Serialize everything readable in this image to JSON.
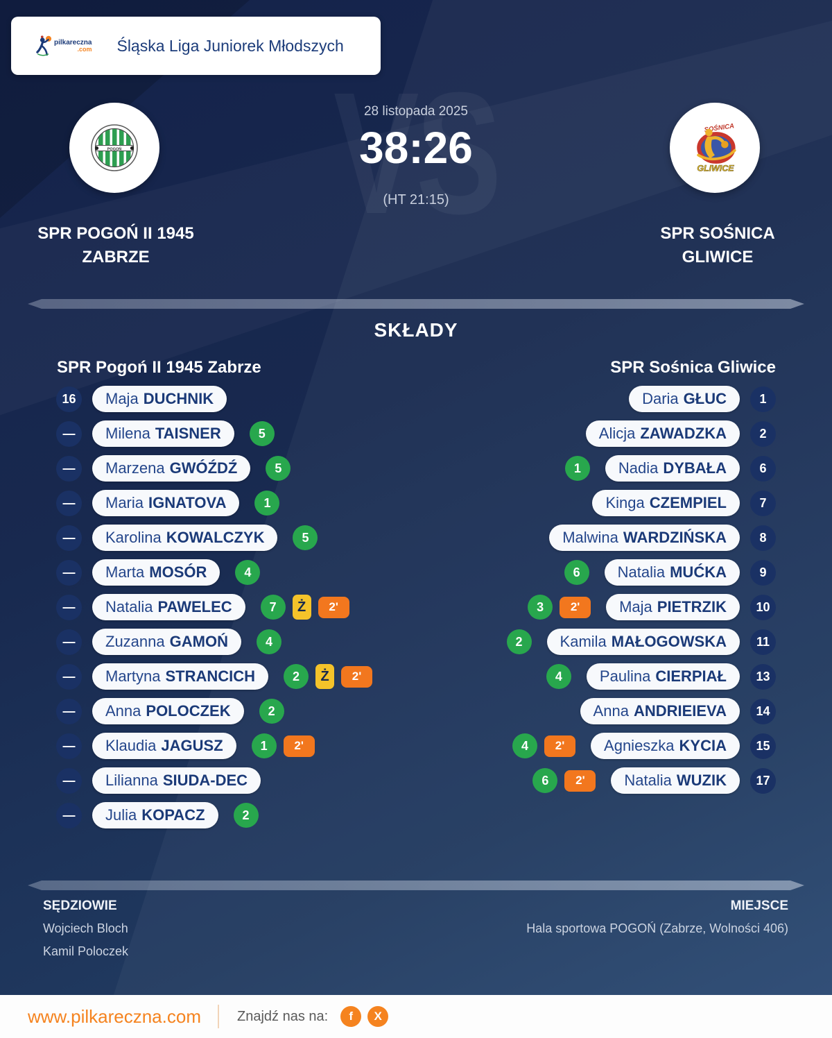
{
  "header": {
    "logo_text": "pilkareczna",
    "logo_tld": ".com",
    "league": "Śląska Liga Juniorek Młodszych"
  },
  "match": {
    "date": "28 listopada 2025",
    "score": "38:26",
    "halftime": "(HT 21:15)",
    "vs_watermark": "VS",
    "home": {
      "name_line1": "SPR POGOŃ II 1945",
      "name_line2": "ZABRZE"
    },
    "away": {
      "name_line1": "SPR SOŚNICA",
      "name_line2": "GLIWICE"
    }
  },
  "lineups": {
    "title": "SKŁADY",
    "home_header": "SPR Pogoń II 1945 Zabrze",
    "away_header": "SPR Sośnica Gliwice",
    "yellow_card_label": "Ż",
    "home_players": [
      {
        "number": "16",
        "first": "Maja",
        "last": "DUCHNIK"
      },
      {
        "number": "—",
        "first": "Milena",
        "last": "TAISNER",
        "goals": "5"
      },
      {
        "number": "—",
        "first": "Marzena",
        "last": "GWÓŹDŹ",
        "goals": "5"
      },
      {
        "number": "—",
        "first": "Maria",
        "last": "IGNATOVA",
        "goals": "1"
      },
      {
        "number": "—",
        "first": "Karolina",
        "last": "KOWALCZYK",
        "goals": "5"
      },
      {
        "number": "—",
        "first": "Marta",
        "last": "MOSÓR",
        "goals": "4"
      },
      {
        "number": "—",
        "first": "Natalia",
        "last": "PAWELEC",
        "goals": "7",
        "yellow": true,
        "two_min": "2'"
      },
      {
        "number": "—",
        "first": "Zuzanna",
        "last": "GAMOŃ",
        "goals": "4"
      },
      {
        "number": "—",
        "first": "Martyna",
        "last": "STRANCICH",
        "goals": "2",
        "yellow": true,
        "two_min": "2'"
      },
      {
        "number": "—",
        "first": "Anna",
        "last": "POLOCZEK",
        "goals": "2"
      },
      {
        "number": "—",
        "first": "Klaudia",
        "last": "JAGUSZ",
        "goals": "1",
        "two_min": "2'"
      },
      {
        "number": "—",
        "first": "Lilianna",
        "last": "SIUDA-DEC"
      },
      {
        "number": "—",
        "first": "Julia",
        "last": "KOPACZ",
        "goals": "2"
      }
    ],
    "away_players": [
      {
        "number": "1",
        "first": "Daria",
        "last": "GŁUC"
      },
      {
        "number": "2",
        "first": "Alicja",
        "last": "ZAWADZKA"
      },
      {
        "number": "6",
        "first": "Nadia",
        "last": "DYBAŁA",
        "goals": "1"
      },
      {
        "number": "7",
        "first": "Kinga",
        "last": "CZEMPIEL"
      },
      {
        "number": "8",
        "first": "Malwina",
        "last": "WARDZIŃSKA"
      },
      {
        "number": "9",
        "first": "Natalia",
        "last": "MUĆKA",
        "goals": "6"
      },
      {
        "number": "10",
        "first": "Maja",
        "last": "PIETRZIK",
        "goals": "3",
        "two_min": "2'"
      },
      {
        "number": "11",
        "first": "Kamila",
        "last": "MAŁOGOWSKA",
        "goals": "2"
      },
      {
        "number": "13",
        "first": "Paulina",
        "last": "CIERPIAŁ",
        "goals": "4"
      },
      {
        "number": "14",
        "first": "Anna",
        "last": "ANDRIEIEVA"
      },
      {
        "number": "15",
        "first": "Agnieszka",
        "last": "KYCIA",
        "goals": "4",
        "two_min": "2'"
      },
      {
        "number": "17",
        "first": "Natalia",
        "last": "WUZIK",
        "goals": "6",
        "two_min": "2'"
      }
    ]
  },
  "officials": {
    "referees_label": "SĘDZIOWIE",
    "referees": [
      "Wojciech Bloch",
      "Kamil Poloczek"
    ],
    "venue_label": "MIEJSCE",
    "venue": "Hala sportowa POGOŃ (Zabrze, Wolności 406)"
  },
  "footer": {
    "website": "www.pilkareczna.com",
    "find_us": "Znajdź nas na:",
    "social": [
      "f",
      "X"
    ]
  },
  "colors": {
    "accent_orange": "#f5831f",
    "goal_green": "#28a74d",
    "yellow_card": "#f5c32a",
    "suspension_orange": "#f2771e",
    "navy_text": "#1b3a78",
    "background_navy": "#18294f"
  }
}
